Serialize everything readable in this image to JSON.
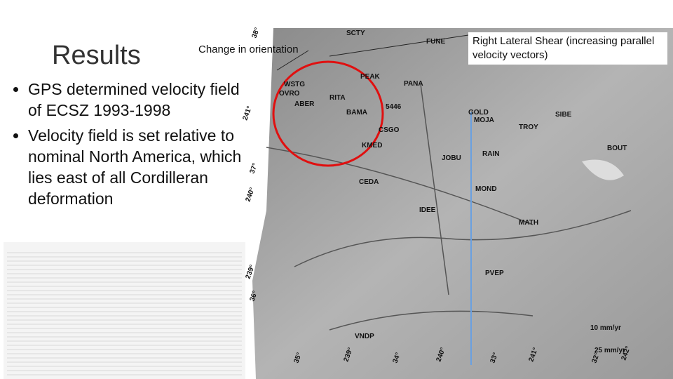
{
  "slide": {
    "title": "Results",
    "bullets": [
      "GPS determined velocity field of ECSZ 1993-1998",
      "Velocity field is set relative to nominal North America, which lies east of all Cordilleran deformation"
    ],
    "callouts": {
      "orientation": "Change in orientation",
      "shear": "Right Lateral Shear (increasing parallel velocity vectors)"
    },
    "map": {
      "stations": [
        "SCTY",
        "FUNE",
        "PEAK",
        "PANA",
        "WSTG",
        "OVRO",
        "RITA",
        "ABER",
        "5446",
        "BAMA",
        "GOLD",
        "MOJA",
        "SIBE",
        "TROY",
        "CSGO",
        "KMED",
        "JOBU",
        "RAIN",
        "BOUT",
        "CEDA",
        "MOND",
        "IDEE",
        "MATH",
        "PVEP",
        "VNDP"
      ],
      "scale": [
        "10 mm/yr",
        "25 mm/yr"
      ],
      "grid_labels": [
        "38°",
        "241°",
        "37°",
        "240°",
        "239°",
        "36°",
        "35°",
        "239°",
        "34°",
        "240°",
        "33°",
        "241°",
        "32°",
        "242°"
      ]
    }
  }
}
